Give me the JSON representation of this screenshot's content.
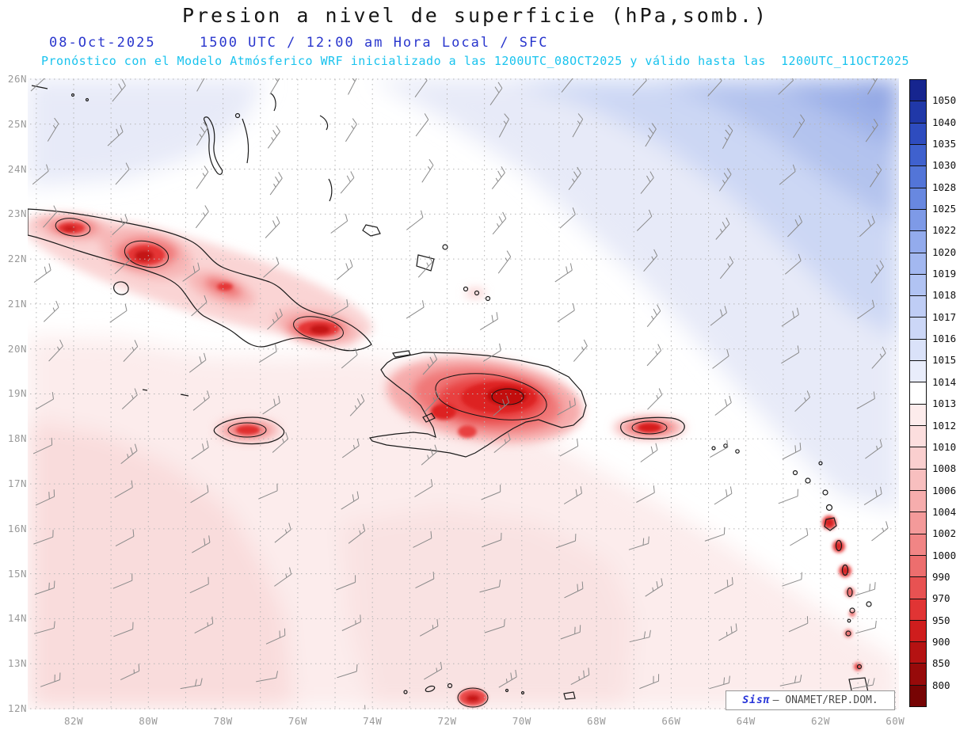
{
  "header": {
    "title": "Presion a nivel de superficie (hPa,somb.)",
    "date": "08-Oct-2025",
    "time_line": "1500 UTC / 12:00 am Hora Local / SFC",
    "forecast_line": "Pronóstico con el Modelo Atmósferico WRF inicializado a las 1200UTC_08OCT2025 y válido hasta las  1200UTC_11OCT2025"
  },
  "axes": {
    "lat_labels": [
      "26N",
      "25N",
      "24N",
      "23N",
      "22N",
      "21N",
      "20N",
      "19N",
      "18N",
      "17N",
      "16N",
      "15N",
      "14N",
      "13N",
      "12N"
    ],
    "lon_labels": [
      "82W",
      "80W",
      "78W",
      "76W",
      "74W",
      "72W",
      "70W",
      "68W",
      "66W",
      "64W",
      "62W",
      "60W"
    ]
  },
  "colorbar": {
    "labels": [
      "1050",
      "1040",
      "1035",
      "1030",
      "1028",
      "1025",
      "1022",
      "1020",
      "1019",
      "1018",
      "1017",
      "1016",
      "1015",
      "1014",
      "1013",
      "1012",
      "1010",
      "1008",
      "1006",
      "1004",
      "1002",
      "1000",
      "990",
      "970",
      "950",
      "900",
      "850",
      "800"
    ],
    "colors": [
      "#16258f",
      "#2038a8",
      "#2e4cbf",
      "#3f61ce",
      "#5375d8",
      "#6888e0",
      "#7e9ae7",
      "#93abed",
      "#a3b8f0",
      "#b1c3f3",
      "#bfcdf5",
      "#ccd7f7",
      "#dae2f9",
      "#e9edfb",
      "#ffffff",
      "#fdecec",
      "#fcdede",
      "#facfcf",
      "#f8bfbf",
      "#f6adad",
      "#f49a9a",
      "#f18585",
      "#ed6e6e",
      "#e85252",
      "#e13434",
      "#cf1d1d",
      "#b51212",
      "#970a0a",
      "#770404"
    ]
  },
  "watermark": {
    "brand": "Sisπ",
    "credit": "– ONAMET/REP.DOM."
  }
}
